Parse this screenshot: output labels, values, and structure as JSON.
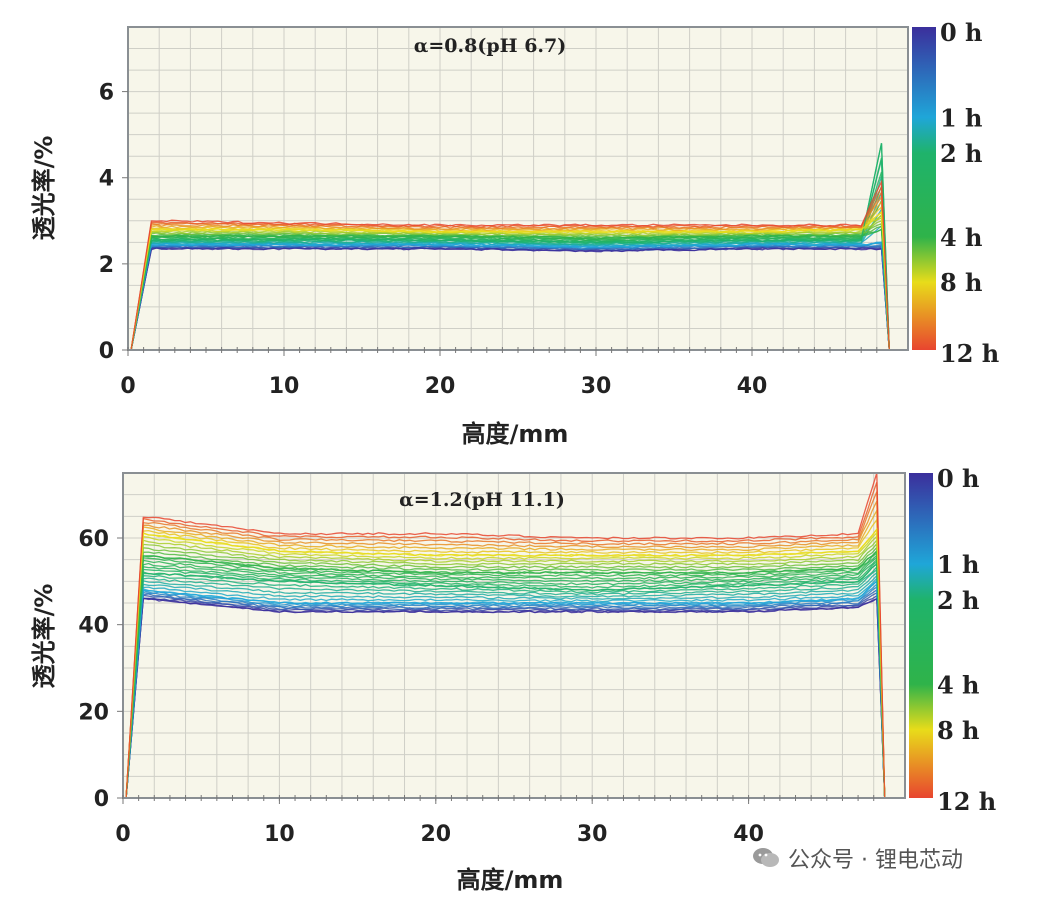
{
  "chart_data": [
    {
      "type": "line",
      "title": "α=0.8(pH 6.7)",
      "xlabel": "高度/mm",
      "ylabel": "透光率/%",
      "xlim": [
        0,
        50
      ],
      "ylim": [
        0,
        7.5
      ],
      "xticks": [
        0,
        10,
        20,
        30,
        40
      ],
      "yticks": [
        0,
        2,
        4,
        6
      ],
      "grid": true,
      "plateau_start_mm": 1.5,
      "end_mm": 48.5,
      "series": [
        {
          "time_h": 0,
          "values": [
            0,
            2.35,
            2.35,
            2.35,
            2.3,
            2.35,
            2.35,
            2.35,
            0
          ],
          "color": "#3b2f9c"
        },
        {
          "time_h": 1,
          "values": [
            0,
            2.45,
            2.45,
            2.45,
            2.4,
            2.45,
            2.45,
            2.5,
            0
          ],
          "color": "#1fa6d8"
        },
        {
          "time_h": 2,
          "values": [
            0,
            2.55,
            2.55,
            2.55,
            2.5,
            2.55,
            2.55,
            4.8,
            0
          ],
          "color": "#1fb36b"
        },
        {
          "time_h": 4,
          "values": [
            0,
            2.65,
            2.65,
            2.65,
            2.6,
            2.65,
            2.65,
            2.8,
            0
          ],
          "color": "#2fb34a"
        },
        {
          "time_h": 8,
          "values": [
            0,
            2.8,
            2.8,
            2.75,
            2.75,
            2.75,
            2.8,
            3.2,
            0
          ],
          "color": "#e8dc1a"
        },
        {
          "time_h": 12,
          "values": [
            0,
            3.0,
            2.95,
            2.9,
            2.9,
            2.9,
            2.9,
            3.9,
            0
          ],
          "color": "#e8452f"
        }
      ],
      "x": [
        0.2,
        1.5,
        10,
        20,
        30,
        40,
        47,
        48.3,
        48.8
      ],
      "colorbar": {
        "labels": [
          "0 h",
          "1 h",
          "2 h",
          "4 h",
          "8 h",
          "12 h"
        ],
        "positions": [
          0,
          0.28,
          0.39,
          0.65,
          0.79,
          1.0
        ],
        "colors": [
          "#3b2f9c",
          "#1fa6d8",
          "#1fb36b",
          "#2fb34a",
          "#e8dc1a",
          "#e8452f"
        ]
      }
    },
    {
      "type": "line",
      "title": "α=1.2(pH 11.1)",
      "xlabel": "高度/mm",
      "ylabel": "透光率/%",
      "xlim": [
        0,
        50
      ],
      "ylim": [
        0,
        75
      ],
      "xticks": [
        0,
        10,
        20,
        30,
        40
      ],
      "yticks": [
        0,
        20,
        40,
        60
      ],
      "grid": true,
      "series": [
        {
          "time_h": 0,
          "values": [
            0,
            46,
            43,
            43,
            43,
            43,
            44,
            46,
            0
          ],
          "color": "#3b2f9c"
        },
        {
          "time_h": 1,
          "values": [
            0,
            48,
            45,
            45,
            45,
            45,
            46,
            50,
            0
          ],
          "color": "#1fa6d8"
        },
        {
          "time_h": 2,
          "values": [
            0,
            52,
            50,
            49,
            48,
            49,
            50,
            54,
            0
          ],
          "color": "#1fb36b"
        },
        {
          "time_h": 4,
          "values": [
            0,
            56,
            53,
            52,
            52,
            52,
            53,
            57,
            0
          ],
          "color": "#2fb34a"
        },
        {
          "time_h": 8,
          "values": [
            0,
            61,
            57,
            56,
            56,
            56,
            57,
            62,
            0
          ],
          "color": "#e8dc1a"
        },
        {
          "time_h": 12,
          "values": [
            0,
            65,
            61,
            61,
            60,
            60,
            61,
            75,
            0
          ],
          "color": "#e8452f"
        }
      ],
      "x": [
        0.2,
        1.3,
        10,
        20,
        30,
        40,
        47,
        48.2,
        48.7
      ],
      "colorbar": {
        "labels": [
          "0 h",
          "1 h",
          "2 h",
          "4 h",
          "8 h",
          "12 h"
        ],
        "positions": [
          0,
          0.28,
          0.39,
          0.65,
          0.79,
          1.0
        ],
        "colors": [
          "#3b2f9c",
          "#1fa6d8",
          "#1fb36b",
          "#2fb34a",
          "#e8dc1a",
          "#e8452f"
        ]
      }
    }
  ],
  "watermark": {
    "text": "公众号 · 锂电芯动",
    "icon": "wechat-icon"
  }
}
